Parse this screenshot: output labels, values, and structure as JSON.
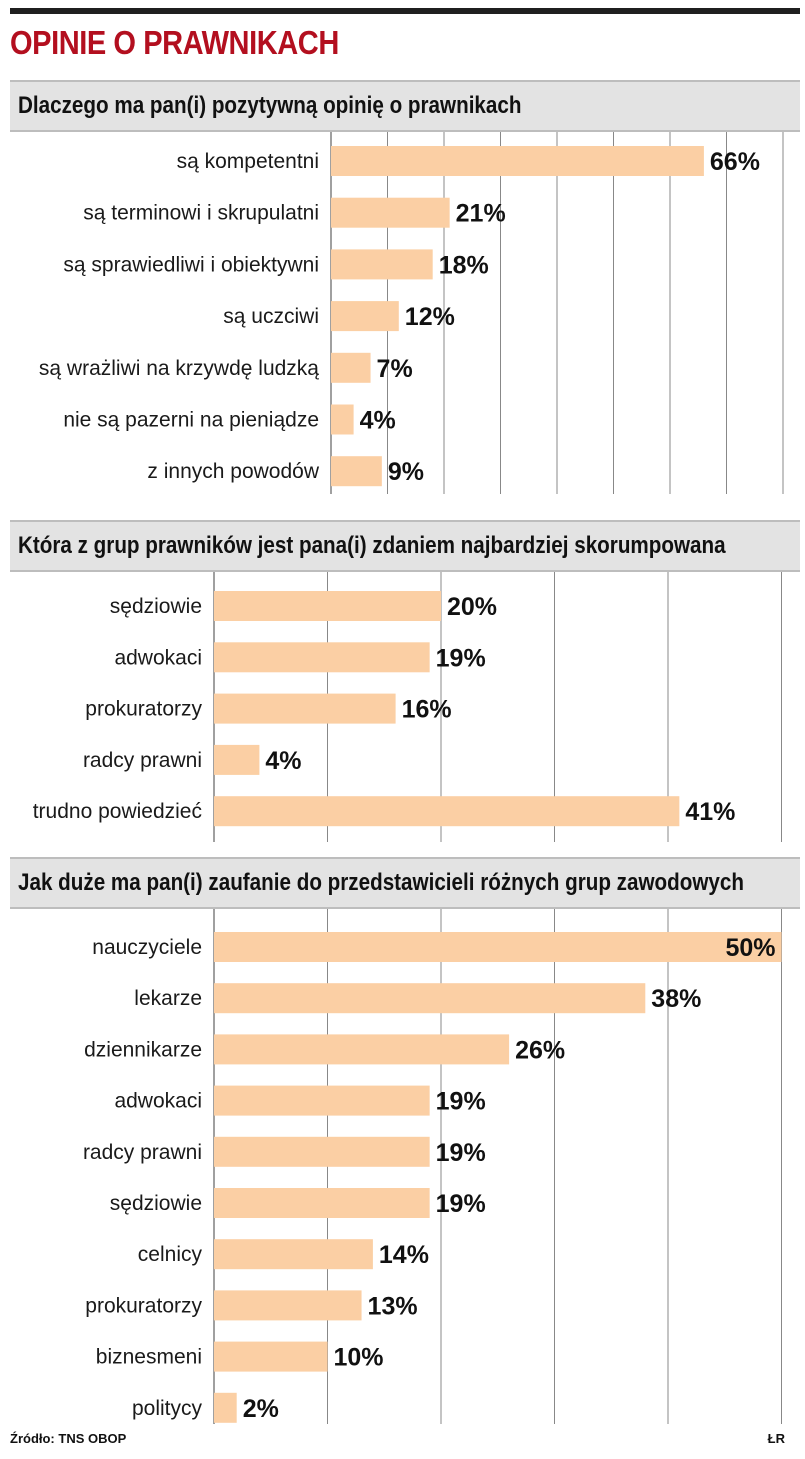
{
  "title": "OPINIE O PRAWNIKACH",
  "source": "Źródło: TNS OBOP",
  "author": "ŁR",
  "colors": {
    "bar": "#fbcfa4",
    "title": "#b30f1f",
    "header_bg": "#e3e3e3",
    "grid": "#888888"
  },
  "chart_data": [
    {
      "type": "bar",
      "orientation": "horizontal",
      "title": "Dlaczego ma pan(i) pozytywną opinię o prawnikach",
      "categories": [
        "są kompetentni",
        "są terminowi i skrupulatni",
        "są sprawiedliwi i obiektywni",
        "są uczciwi",
        "są wrażliwi na krzywdę ludzką",
        "nie są pazerni na pieniądze",
        "z innych powodów"
      ],
      "values": [
        66,
        21,
        18,
        12,
        7,
        4,
        9
      ],
      "value_labels": [
        "66%",
        "21%",
        "18%",
        "12%",
        "7%",
        "4%",
        "9%"
      ],
      "xlim": [
        0,
        80
      ],
      "grid": true
    },
    {
      "type": "bar",
      "orientation": "horizontal",
      "title": "Która z grup prawników jest pana(i) zdaniem najbardziej skorumpowana",
      "categories": [
        "sędziowie",
        "adwokaci",
        "prokuratorzy",
        "radcy prawni",
        "trudno powiedzieć"
      ],
      "values": [
        20,
        19,
        16,
        4,
        41
      ],
      "value_labels": [
        "20%",
        "19%",
        "16%",
        "4%",
        "41%"
      ],
      "xlim": [
        0,
        50
      ],
      "grid": true
    },
    {
      "type": "bar",
      "orientation": "horizontal",
      "title": "Jak duże ma pan(i) zaufanie do przedstawicieli różnych grup zawodowych",
      "categories": [
        "nauczyciele",
        "lekarze",
        "dziennikarze",
        "adwokaci",
        "radcy prawni",
        "sędziowie",
        "celnicy",
        "prokuratorzy",
        "biznesmeni",
        "politycy"
      ],
      "values": [
        50,
        38,
        26,
        19,
        19,
        19,
        14,
        13,
        10,
        2
      ],
      "value_labels": [
        "50%",
        "38%",
        "26%",
        "19%",
        "19%",
        "19%",
        "14%",
        "13%",
        "10%",
        "2%"
      ],
      "xlim": [
        0,
        50
      ],
      "grid": true
    }
  ]
}
